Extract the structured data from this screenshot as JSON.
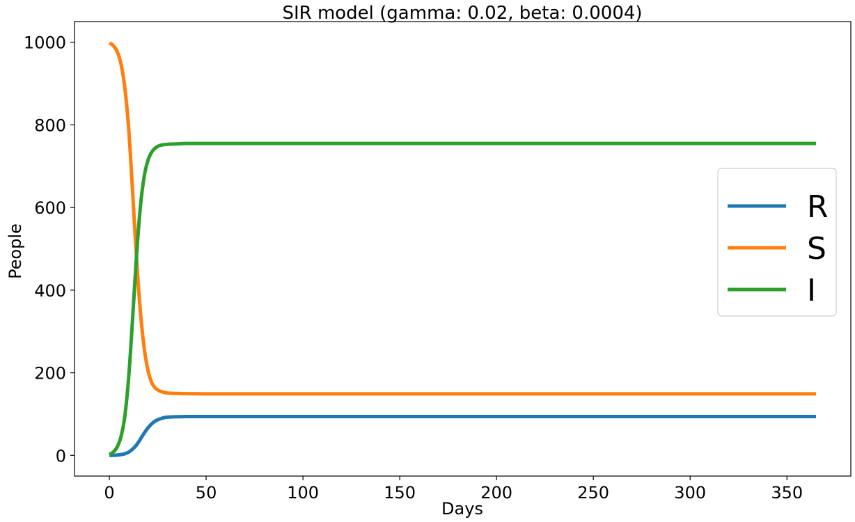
{
  "chart_data": {
    "type": "line",
    "title": "SIR model (gamma: 0.02, beta: 0.0004)",
    "xlabel": "Days",
    "ylabel": "People",
    "xlim": [
      -18,
      383
    ],
    "ylim": [
      -50,
      1050
    ],
    "xticks": [
      0,
      50,
      100,
      150,
      200,
      250,
      300,
      350
    ],
    "yticks": [
      0,
      200,
      400,
      600,
      800,
      1000
    ],
    "grid": false,
    "legend_position": "center-right",
    "x": [
      0,
      2,
      4,
      6,
      8,
      10,
      12,
      14,
      16,
      18,
      20,
      22,
      24,
      26,
      28,
      30,
      35,
      40,
      50,
      60,
      80,
      100,
      150,
      200,
      250,
      300,
      365
    ],
    "series": [
      {
        "name": "R",
        "color": "#1f77b4",
        "values": [
          0,
          0.3,
          0.8,
          2,
          4,
          8,
          15,
          25,
          39,
          54,
          67,
          77,
          84,
          88,
          91,
          92.5,
          93.5,
          94,
          94,
          94,
          94,
          94,
          94,
          94,
          94,
          94,
          94
        ]
      },
      {
        "name": "S",
        "color": "#ff7f0e",
        "values": [
          998,
          992,
          978,
          948,
          890,
          790,
          640,
          480,
          350,
          260,
          205,
          175,
          162,
          156,
          153,
          151,
          150,
          149.5,
          149,
          149,
          149,
          149,
          149,
          149,
          149,
          149,
          149
        ]
      },
      {
        "name": "I",
        "color": "#2ca02c",
        "values": [
          2,
          8,
          20,
          45,
          95,
          190,
          330,
          480,
          600,
          675,
          715,
          735,
          745,
          750,
          752,
          753,
          754,
          755,
          755,
          755,
          755,
          755,
          755,
          755,
          755,
          755,
          755
        ]
      }
    ]
  }
}
